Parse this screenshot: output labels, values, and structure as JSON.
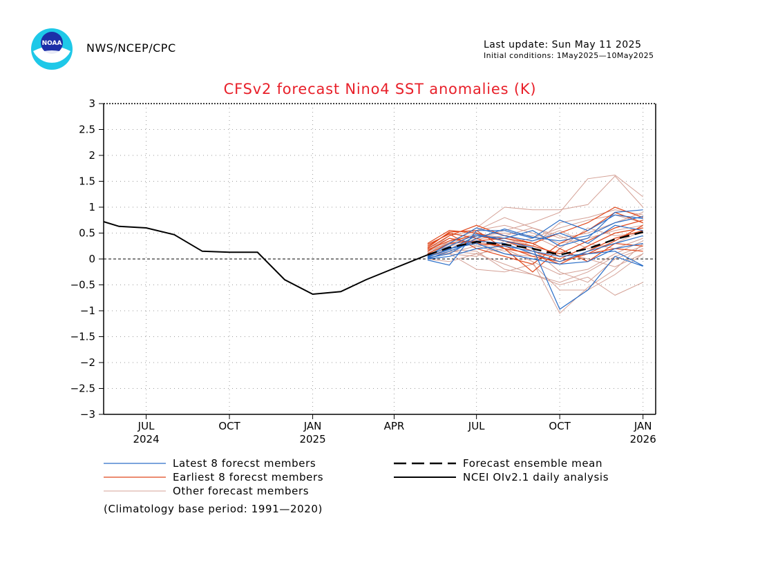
{
  "header": {
    "agency": "NWS/NCEP/CPC",
    "last_update": "Last update: Sun May 11 2025",
    "initial_conditions": "Initial conditions: 1May2025—10May2025"
  },
  "logo": {
    "icon": "noaa-logo",
    "text": "NOAA"
  },
  "colors": {
    "title": "#e8202a",
    "latest": "#2a6ec8",
    "earliest": "#e0461a",
    "other": "#d4a095",
    "observed": "#000000",
    "ensemble_mean": "#000000"
  },
  "chart_data": {
    "type": "line",
    "title": "CFSv2 forecast Nino4 SST anomalies (K)",
    "ylim": [
      -3,
      3
    ],
    "y_ticks": [
      "3",
      "2.5",
      "2",
      "1.5",
      "1",
      "0.5",
      "0",
      "−0.5",
      "−1",
      "−1.5",
      "−2",
      "−2.5",
      "−3"
    ],
    "y_tick_values": [
      3,
      2.5,
      2,
      1.5,
      1,
      0.5,
      0,
      -0.5,
      -1,
      -1.5,
      -2,
      -2.5,
      -3
    ],
    "x_axis": {
      "start": "2024-05-15",
      "end": "2026-01-15"
    },
    "x_ticks": [
      {
        "label": "JUL",
        "year": "2024",
        "date": "2024-07-01"
      },
      {
        "label": "OCT",
        "year": "",
        "date": "2024-10-01"
      },
      {
        "label": "JAN",
        "year": "2025",
        "date": "2025-01-01"
      },
      {
        "label": "APR",
        "year": "",
        "date": "2025-04-01"
      },
      {
        "label": "JUL",
        "year": "",
        "date": "2025-07-01"
      },
      {
        "label": "OCT",
        "year": "",
        "date": "2025-10-01"
      },
      {
        "label": "JAN",
        "year": "2026",
        "date": "2026-01-01"
      }
    ],
    "grid": true,
    "zero_line": true,
    "series": [
      {
        "name": "NCEI OIv2.1 daily analysis",
        "style": "solid",
        "points": [
          [
            "2024-05-15",
            0.72
          ],
          [
            "2024-06-01",
            0.63
          ],
          [
            "2024-07-01",
            0.6
          ],
          [
            "2024-08-01",
            0.47
          ],
          [
            "2024-09-01",
            0.15
          ],
          [
            "2024-10-01",
            0.13
          ],
          [
            "2024-11-01",
            0.13
          ],
          [
            "2024-12-01",
            -0.4
          ],
          [
            "2025-01-01",
            -0.68
          ],
          [
            "2025-02-01",
            -0.63
          ],
          [
            "2025-03-01",
            -0.4
          ],
          [
            "2025-04-01",
            -0.18
          ],
          [
            "2025-05-08",
            0.08
          ]
        ]
      },
      {
        "name": "Forecast ensemble mean",
        "style": "dashed",
        "points": [
          [
            "2025-05-08",
            0.08
          ],
          [
            "2025-06-01",
            0.22
          ],
          [
            "2025-07-01",
            0.33
          ],
          [
            "2025-08-01",
            0.28
          ],
          [
            "2025-09-01",
            0.2
          ],
          [
            "2025-10-01",
            0.08
          ],
          [
            "2025-11-01",
            0.2
          ],
          [
            "2025-12-01",
            0.38
          ],
          [
            "2026-01-01",
            0.52
          ]
        ]
      },
      {
        "name": "Latest 8 forecst members",
        "group": "latest",
        "members": [
          [
            -0.02,
            -0.12,
            0.55,
            0.55,
            0.4,
            0.75,
            0.55,
            0.85,
            0.78
          ],
          [
            0.05,
            0.25,
            0.48,
            0.35,
            0.22,
            -0.97,
            -0.6,
            0.05,
            -0.14
          ],
          [
            0.02,
            0.1,
            0.4,
            0.58,
            0.42,
            0.35,
            0.45,
            0.7,
            0.82
          ],
          [
            0.0,
            0.15,
            0.35,
            0.3,
            0.1,
            -0.05,
            0.15,
            0.3,
            0.45
          ],
          [
            0.05,
            0.3,
            0.6,
            0.45,
            0.35,
            0.5,
            0.3,
            0.65,
            0.55
          ],
          [
            0.03,
            0.2,
            0.3,
            0.1,
            0.0,
            -0.1,
            -0.05,
            0.2,
            0.3
          ],
          [
            0.04,
            0.18,
            0.45,
            0.4,
            0.55,
            0.25,
            0.4,
            0.9,
            0.95
          ],
          [
            0.0,
            0.05,
            0.2,
            0.25,
            0.15,
            0.05,
            0.1,
            0.15,
            -0.13
          ]
        ]
      },
      {
        "name": "Earliest 8 forecst members",
        "group": "earliest",
        "members": [
          [
            0.25,
            0.5,
            0.4,
            0.2,
            0.1,
            -0.1,
            0.15,
            0.4,
            0.55
          ],
          [
            0.2,
            0.45,
            0.65,
            0.45,
            0.3,
            0.5,
            0.7,
            1.0,
            0.8
          ],
          [
            0.3,
            0.55,
            0.5,
            0.35,
            0.25,
            0.1,
            0.35,
            0.6,
            0.75
          ],
          [
            0.15,
            0.4,
            0.3,
            0.25,
            0.05,
            -0.05,
            0.1,
            0.35,
            0.65
          ],
          [
            0.22,
            0.52,
            0.55,
            0.2,
            -0.25,
            0.2,
            -0.05,
            0.3,
            0.25
          ],
          [
            0.18,
            0.35,
            0.45,
            0.35,
            0.15,
            0.0,
            0.25,
            0.5,
            0.6
          ],
          [
            0.28,
            0.48,
            0.2,
            0.05,
            -0.1,
            0.3,
            0.55,
            0.9,
            0.7
          ],
          [
            0.1,
            0.3,
            0.35,
            0.4,
            0.3,
            0.05,
            0.1,
            0.2,
            0.15
          ]
        ]
      },
      {
        "name": "Other forecast members",
        "group": "other",
        "members": [
          [
            0.15,
            0.3,
            0.6,
            1.0,
            0.95,
            0.95,
            1.05,
            1.6,
            1.0
          ],
          [
            0.1,
            0.2,
            0.4,
            0.55,
            0.7,
            0.9,
            1.55,
            1.62,
            1.2
          ],
          [
            0.05,
            0.15,
            0.1,
            -0.1,
            -0.3,
            -0.5,
            -0.35,
            -0.7,
            -0.45
          ],
          [
            0.12,
            0.25,
            0.35,
            0.2,
            -0.05,
            -1.05,
            -0.55,
            -0.2,
            0.3
          ],
          [
            0.08,
            0.1,
            -0.2,
            -0.25,
            -0.1,
            -0.6,
            -0.6,
            -0.3,
            0.1
          ],
          [
            0.1,
            0.35,
            0.55,
            0.8,
            0.6,
            0.4,
            0.5,
            0.7,
            0.9
          ],
          [
            0.2,
            0.4,
            0.25,
            0.3,
            0.4,
            0.6,
            0.75,
            0.85,
            0.7
          ],
          [
            0.0,
            -0.05,
            0.1,
            0.2,
            -0.05,
            -0.3,
            -0.2,
            0.1,
            0.35
          ],
          [
            0.15,
            0.45,
            0.55,
            0.65,
            0.5,
            0.3,
            0.4,
            0.55,
            0.65
          ],
          [
            0.05,
            0.2,
            0.3,
            0.15,
            0.35,
            0.55,
            0.3,
            0.2,
            0.4
          ],
          [
            0.1,
            0.1,
            0.05,
            0.35,
            0.2,
            -0.25,
            -0.45,
            0.0,
            0.2
          ],
          [
            0.18,
            0.3,
            0.45,
            0.5,
            0.45,
            0.2,
            0.6,
            0.45,
            0.5
          ],
          [
            0.02,
            0.12,
            0.25,
            0.1,
            0.05,
            0.15,
            0.0,
            -0.15,
            0.1
          ],
          [
            0.14,
            0.32,
            0.5,
            0.4,
            0.25,
            0.7,
            0.8,
            0.95,
            0.85
          ],
          [
            0.06,
            0.18,
            0.15,
            -0.2,
            -0.3,
            -0.45,
            -0.25,
            0.05,
            0.25
          ],
          [
            0.11,
            0.28,
            0.38,
            0.45,
            0.6,
            0.45,
            0.2,
            0.3,
            0.55
          ]
        ]
      }
    ],
    "member_dates": [
      "2025-05-08",
      "2025-06-01",
      "2025-07-01",
      "2025-08-01",
      "2025-09-01",
      "2025-10-01",
      "2025-11-01",
      "2025-12-01",
      "2026-01-01"
    ],
    "legend": {
      "placement": "bottom",
      "latest": "Latest 8 forecst members",
      "earliest": "Earliest 8 forecst members",
      "other": "Other forecast members",
      "mean": "Forecast ensemble mean",
      "observed": "NCEI OIv2.1 daily analysis"
    },
    "note": "(Climatology base period: 1991—2020)"
  }
}
